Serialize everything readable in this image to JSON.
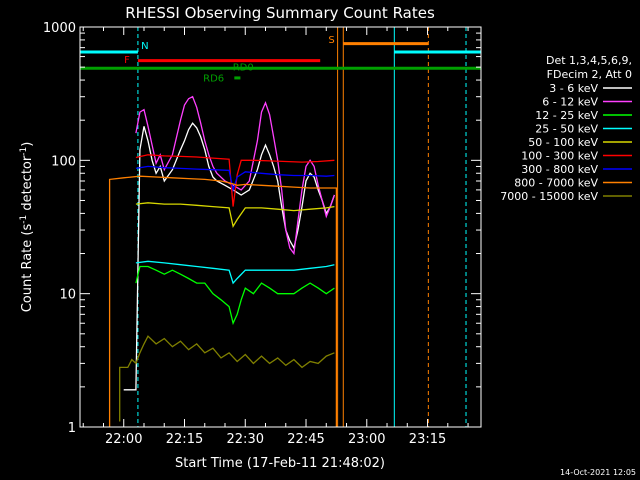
{
  "chart_data": {
    "type": "line",
    "title": "RHESSI Observing Summary Count Rates",
    "xlabel": "Start Time (17-Feb-11 21:48:02)",
    "ylabel_prefix": "Count Rate (s",
    "ylabel_exp1": "-1",
    "ylabel_mid": " detector",
    "ylabel_exp2": "-1",
    "ylabel_suffix": ")",
    "yscale": "log",
    "ylim": [
      1,
      1000
    ],
    "xlim": [
      -10.8,
      88.2
    ],
    "x_unit": "minutes from 22:00",
    "x_ticks": [
      {
        "value": 0,
        "label": "22:00"
      },
      {
        "value": 15,
        "label": "22:15"
      },
      {
        "value": 30,
        "label": "22:30"
      },
      {
        "value": 45,
        "label": "22:45"
      },
      {
        "value": 60,
        "label": "23:00"
      },
      {
        "value": 75,
        "label": "23:15"
      }
    ],
    "y_ticks": [
      {
        "value": 1,
        "label": "1"
      },
      {
        "value": 10,
        "label": "10"
      },
      {
        "value": 100,
        "label": "100"
      },
      {
        "value": 1000,
        "label": "1000"
      }
    ],
    "legend": {
      "header1": "Det 1,3,4,5,6,9,",
      "header2": "FDecim 2, Att 0",
      "placement": "right"
    },
    "series": [
      {
        "name": "3 - 6 keV",
        "color": "#ffffff",
        "points": [
          [
            0,
            1.9
          ],
          [
            1,
            1.9
          ],
          [
            3,
            1.9
          ],
          [
            4,
            120
          ],
          [
            5,
            180
          ],
          [
            6,
            140
          ],
          [
            7,
            100
          ],
          [
            8,
            80
          ],
          [
            9,
            90
          ],
          [
            10,
            70
          ],
          [
            12,
            85
          ],
          [
            14,
            120
          ],
          [
            15,
            140
          ],
          [
            16,
            170
          ],
          [
            17,
            190
          ],
          [
            18,
            175
          ],
          [
            19,
            150
          ],
          [
            20,
            120
          ],
          [
            21,
            90
          ],
          [
            22,
            75
          ],
          [
            23,
            70
          ],
          [
            25,
            65
          ],
          [
            27,
            60
          ],
          [
            29,
            55
          ],
          [
            31,
            60
          ],
          [
            33,
            85
          ],
          [
            34,
            110
          ],
          [
            35,
            130
          ],
          [
            36,
            110
          ],
          [
            37,
            90
          ],
          [
            38,
            70
          ],
          [
            39,
            45
          ],
          [
            40,
            30
          ],
          [
            41,
            25
          ],
          [
            42,
            22
          ],
          [
            43,
            30
          ],
          [
            44,
            45
          ],
          [
            45,
            70
          ],
          [
            46,
            80
          ],
          [
            47,
            75
          ],
          [
            48,
            60
          ],
          [
            49,
            50
          ],
          [
            50,
            40
          ],
          [
            51,
            45
          ],
          [
            52,
            55
          ]
        ]
      },
      {
        "name": "6 - 12 keV",
        "color": "#ff40ff",
        "points": [
          [
            3,
            160
          ],
          [
            4,
            230
          ],
          [
            5,
            240
          ],
          [
            6,
            180
          ],
          [
            7,
            130
          ],
          [
            8,
            95
          ],
          [
            9,
            110
          ],
          [
            10,
            85
          ],
          [
            12,
            110
          ],
          [
            14,
            200
          ],
          [
            15,
            260
          ],
          [
            16,
            290
          ],
          [
            17,
            300
          ],
          [
            18,
            250
          ],
          [
            19,
            190
          ],
          [
            20,
            140
          ],
          [
            21,
            110
          ],
          [
            22,
            90
          ],
          [
            23,
            80
          ],
          [
            25,
            70
          ],
          [
            27,
            65
          ],
          [
            29,
            60
          ],
          [
            31,
            70
          ],
          [
            33,
            140
          ],
          [
            34,
            230
          ],
          [
            35,
            270
          ],
          [
            36,
            220
          ],
          [
            37,
            150
          ],
          [
            38,
            100
          ],
          [
            39,
            60
          ],
          [
            40,
            30
          ],
          [
            41,
            22
          ],
          [
            42,
            20
          ],
          [
            43,
            35
          ],
          [
            44,
            60
          ],
          [
            45,
            90
          ],
          [
            46,
            100
          ],
          [
            47,
            90
          ],
          [
            48,
            65
          ],
          [
            49,
            50
          ],
          [
            50,
            38
          ],
          [
            51,
            45
          ],
          [
            52,
            55
          ]
        ]
      },
      {
        "name": "12 - 25 keV",
        "color": "#00ff00",
        "points": [
          [
            3,
            12
          ],
          [
            4,
            16
          ],
          [
            6,
            16
          ],
          [
            8,
            15
          ],
          [
            10,
            14
          ],
          [
            12,
            15
          ],
          [
            14,
            14
          ],
          [
            16,
            13
          ],
          [
            18,
            12
          ],
          [
            20,
            12
          ],
          [
            22,
            10
          ],
          [
            24,
            9
          ],
          [
            26,
            8
          ],
          [
            27,
            6
          ],
          [
            28,
            7
          ],
          [
            29,
            9
          ],
          [
            30,
            11
          ],
          [
            32,
            10
          ],
          [
            34,
            12
          ],
          [
            36,
            11
          ],
          [
            38,
            10
          ],
          [
            40,
            10
          ],
          [
            42,
            10
          ],
          [
            44,
            11
          ],
          [
            46,
            12
          ],
          [
            48,
            11
          ],
          [
            50,
            10
          ],
          [
            52,
            11
          ]
        ]
      },
      {
        "name": "25 - 50 keV",
        "color": "#00ffff",
        "points": [
          [
            3,
            17
          ],
          [
            6,
            17.5
          ],
          [
            10,
            17
          ],
          [
            14,
            16.5
          ],
          [
            18,
            16
          ],
          [
            22,
            15.5
          ],
          [
            26,
            15
          ],
          [
            27,
            12
          ],
          [
            28,
            13
          ],
          [
            30,
            15
          ],
          [
            34,
            15
          ],
          [
            38,
            15
          ],
          [
            42,
            15
          ],
          [
            46,
            15.5
          ],
          [
            50,
            16
          ],
          [
            52,
            16.5
          ]
        ]
      },
      {
        "name": "50 - 100 keV",
        "color": "#d8d800",
        "points": [
          [
            3,
            47
          ],
          [
            6,
            48
          ],
          [
            10,
            47
          ],
          [
            14,
            47
          ],
          [
            18,
            46
          ],
          [
            22,
            45
          ],
          [
            26,
            44
          ],
          [
            27,
            32
          ],
          [
            28,
            36
          ],
          [
            30,
            44
          ],
          [
            34,
            44
          ],
          [
            38,
            43
          ],
          [
            42,
            42
          ],
          [
            46,
            43
          ],
          [
            50,
            44
          ],
          [
            52,
            45
          ]
        ]
      },
      {
        "name": "100 - 300 keV",
        "color": "#ff0000",
        "points": [
          [
            3,
            105
          ],
          [
            6,
            110
          ],
          [
            10,
            108
          ],
          [
            14,
            107
          ],
          [
            18,
            106
          ],
          [
            22,
            104
          ],
          [
            26,
            102
          ],
          [
            27,
            45
          ],
          [
            28,
            78
          ],
          [
            29,
            100
          ],
          [
            32,
            100
          ],
          [
            36,
            99
          ],
          [
            40,
            98
          ],
          [
            44,
            97
          ],
          [
            48,
            98
          ],
          [
            52,
            100
          ]
        ]
      },
      {
        "name": "300 - 800 keV",
        "color": "#0000ff",
        "points": [
          [
            3,
            87
          ],
          [
            6,
            90
          ],
          [
            10,
            88
          ],
          [
            14,
            87
          ],
          [
            18,
            86
          ],
          [
            22,
            85
          ],
          [
            26,
            84
          ],
          [
            27,
            60
          ],
          [
            28,
            75
          ],
          [
            30,
            82
          ],
          [
            34,
            80
          ],
          [
            38,
            78
          ],
          [
            42,
            77
          ],
          [
            46,
            77
          ],
          [
            50,
            76
          ],
          [
            52,
            77
          ]
        ]
      },
      {
        "name": "800 - 7000 keV",
        "color": "#ff8000",
        "points": [
          [
            -3.5,
            1
          ],
          [
            -3.5,
            72
          ],
          [
            0,
            74
          ],
          [
            4,
            76
          ],
          [
            8,
            75
          ],
          [
            12,
            74
          ],
          [
            16,
            73
          ],
          [
            20,
            72
          ],
          [
            24,
            70
          ],
          [
            26,
            68
          ],
          [
            28,
            65
          ],
          [
            30,
            66
          ],
          [
            34,
            65
          ],
          [
            38,
            64
          ],
          [
            42,
            63
          ],
          [
            46,
            62
          ],
          [
            50,
            62
          ],
          [
            52.5,
            62
          ],
          [
            52.5,
            1
          ]
        ]
      },
      {
        "name": "7000 - 15000 keV",
        "color": "#808000",
        "points": [
          [
            -1,
            1.1
          ],
          [
            -1,
            2.8
          ],
          [
            1,
            2.8
          ],
          [
            2,
            3.2
          ],
          [
            3,
            3
          ],
          [
            4,
            3.6
          ],
          [
            5,
            4.2
          ],
          [
            6,
            4.8
          ],
          [
            8,
            4.2
          ],
          [
            10,
            4.6
          ],
          [
            12,
            4
          ],
          [
            14,
            4.4
          ],
          [
            16,
            3.8
          ],
          [
            18,
            4.2
          ],
          [
            20,
            3.6
          ],
          [
            22,
            3.9
          ],
          [
            24,
            3.3
          ],
          [
            26,
            3.6
          ],
          [
            28,
            3.1
          ],
          [
            30,
            3.5
          ],
          [
            32,
            3
          ],
          [
            34,
            3.4
          ],
          [
            36,
            3
          ],
          [
            38,
            3.3
          ],
          [
            40,
            2.9
          ],
          [
            42,
            3.2
          ],
          [
            44,
            2.8
          ],
          [
            46,
            3.1
          ],
          [
            48,
            3
          ],
          [
            50,
            3.4
          ],
          [
            52,
            3.6
          ]
        ]
      }
    ],
    "flag_bars": [
      {
        "label": "N",
        "color": "#00ffff",
        "value": 650,
        "x_start": -10.8,
        "x_end": 3.5
      },
      {
        "label": "N",
        "color": "#00ffff",
        "value": 650,
        "x_start": 66.8,
        "x_end": 88.2
      },
      {
        "label": "F",
        "color": "#ff0000",
        "value": 560,
        "x_start": 3.5,
        "x_end": 48.5
      },
      {
        "label": "S",
        "color": "#ff8000",
        "value": 750,
        "x_start": 54.2,
        "x_end": 75.2
      },
      {
        "label": "RD0",
        "color": "#00a000",
        "value": 490,
        "x_start": -10.8,
        "x_end": 88.2
      },
      {
        "label": "RD6",
        "color": "#00a000",
        "value": 415,
        "x_start": 27.3,
        "x_end": 28.8
      }
    ],
    "flag_labels": [
      {
        "text": "N",
        "color": "#00ffff",
        "x": 5.2,
        "value": 720
      },
      {
        "text": "F",
        "color": "#ff0000",
        "x": 0.8,
        "value": 565
      },
      {
        "text": "S",
        "color": "#ff8000",
        "x": 51.3,
        "value": 800
      },
      {
        "text": "RD0",
        "color": "#00a000",
        "x": 29.5,
        "value": 495
      },
      {
        "text": "RD6",
        "color": "#00a000",
        "x": 22.2,
        "value": 410
      }
    ],
    "vlines": [
      {
        "x": -10.8,
        "color": "#00ffff",
        "dash": false
      },
      {
        "x": 3.5,
        "color": "#00ffff",
        "dash": true
      },
      {
        "x": 52.8,
        "color": "#ff8000",
        "dash": false
      },
      {
        "x": 54.2,
        "color": "#ff8000",
        "dash": false
      },
      {
        "x": 66.8,
        "color": "#00ffff",
        "dash": false
      },
      {
        "x": 75.2,
        "color": "#ff8000",
        "dash": true
      },
      {
        "x": 84.5,
        "color": "#00ffff",
        "dash": true
      }
    ],
    "black_block": {
      "x_start": 0.2,
      "x_end": 3.3,
      "value": 1.9
    },
    "grid": false
  },
  "footer": {
    "timestamp": "14-Oct-2021 12:05"
  }
}
